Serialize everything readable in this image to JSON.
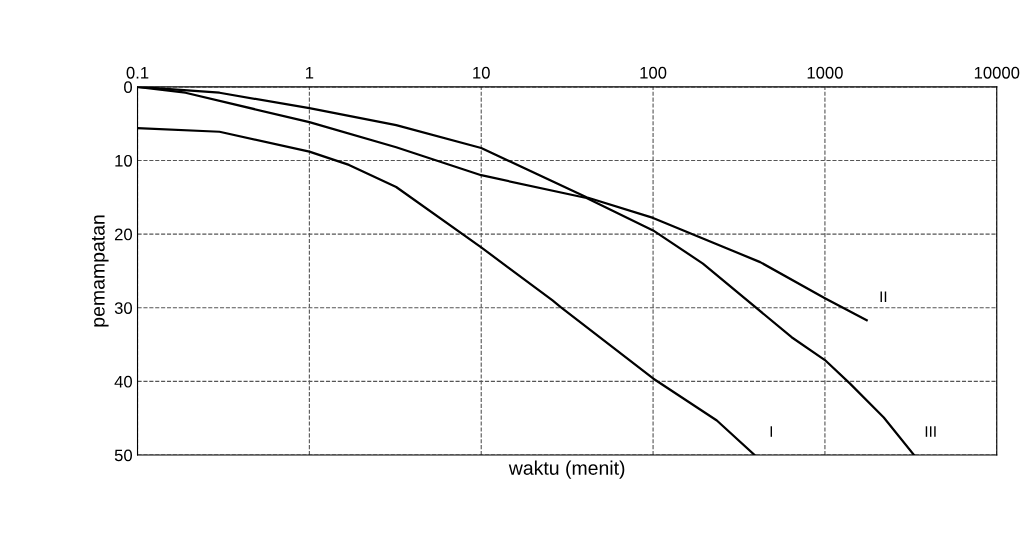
{
  "chart_data": {
    "type": "line",
    "xlabel": "waktu (menit)",
    "ylabel": "pemampatan",
    "log": "x",
    "xlim": [
      0.1,
      10000
    ],
    "xticks": [
      0.1,
      1,
      10,
      100,
      1000,
      10000
    ],
    "ylim": [
      50,
      0
    ],
    "yticks": [
      0,
      10,
      20,
      30,
      40,
      50
    ],
    "grid": true,
    "marker": "none",
    "line_style": "solid",
    "series": [
      {
        "name": "I",
        "color": "#000000",
        "x": [
          0.1,
          0.3,
          1,
          1.7,
          3.2,
          10,
          26,
          29,
          100,
          235,
          390
        ],
        "values": [
          5.6,
          6.1,
          8.8,
          10.6,
          13.6,
          21.8,
          29.0,
          29.9,
          39.6,
          45.3,
          50
        ]
      },
      {
        "name": "II",
        "color": "#000000",
        "x": [
          0.1,
          0.3,
          1,
          3.2,
          10,
          41,
          100,
          420,
          1000,
          1750
        ],
        "values": [
          0,
          0.8,
          2.9,
          5.2,
          8.3,
          15.0,
          17.8,
          23.8,
          28.7,
          31.7
        ]
      },
      {
        "name": "III",
        "color": "#000000",
        "x": [
          0.1,
          0.19,
          1,
          3.2,
          10,
          41,
          100,
          195,
          640,
          1000,
          1400,
          2200,
          3300
        ],
        "values": [
          0,
          0.8,
          4.8,
          8.2,
          12.0,
          15.1,
          19.5,
          24,
          34.0,
          37.1,
          40.3,
          44.9,
          50
        ]
      }
    ]
  }
}
